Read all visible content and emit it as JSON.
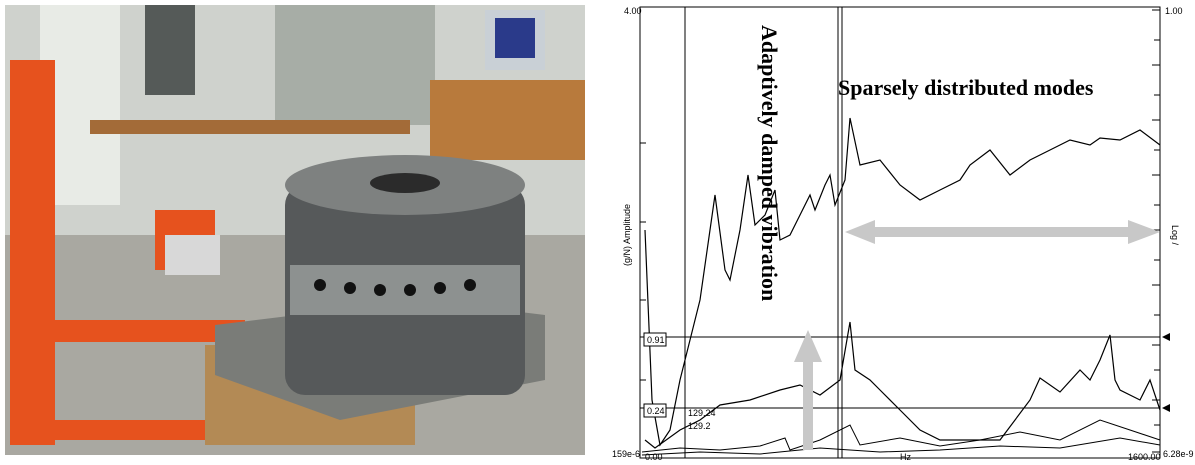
{
  "plot": {
    "y_left_top": "4.00",
    "y_left_bottom": "159e-6",
    "y_left_label": "(g/N) Amplitude",
    "y_right_top": "1.00",
    "y_right_bottom": "6.28e-9",
    "y_right_label": "Log /",
    "x_left": "0.00",
    "x_label": "Hz",
    "x_right": "1600.00",
    "cursor_boxes": [
      "0.91",
      "0.24"
    ],
    "cursor_readouts": [
      "129.24",
      "129.2"
    ],
    "annotation_vertical": "Adaptively damped vibration",
    "annotation_horizontal": "Sparsely distributed modes"
  }
}
